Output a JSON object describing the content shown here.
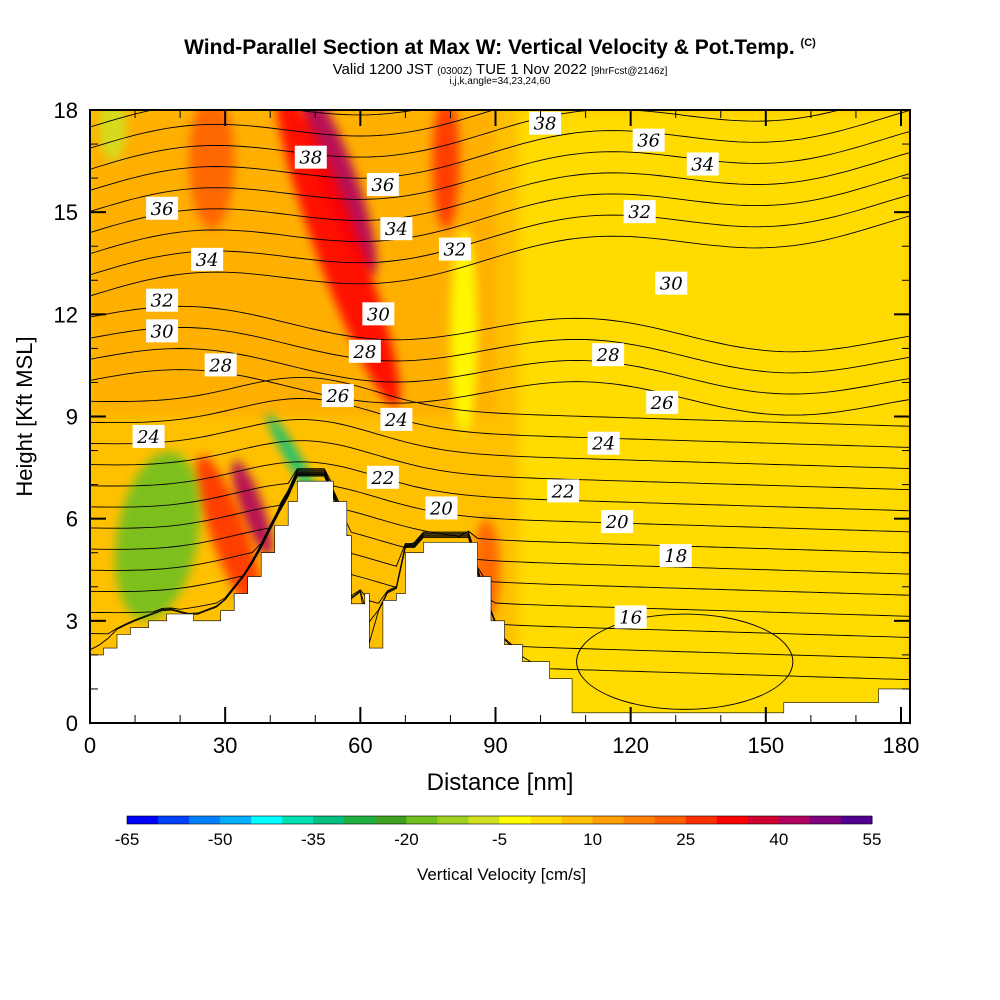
{
  "header": {
    "title": "Wind-Parallel Section at Max W: Vertical Velocity & Pot.Temp.",
    "copyright": "(C)",
    "valid_main": "Valid 1200 JST",
    "valid_small": "(0300Z)",
    "valid_date": "TUE 1 Nov 2022",
    "forecast": "[9hrFcst@2146z]",
    "indices": "i,j,k,angle=34,23,24,60"
  },
  "chart_data": {
    "type": "heatmap",
    "xlabel": "Distance [nm]",
    "ylabel": "Height [Kft MSL]",
    "xlim": [
      0,
      182
    ],
    "ylim": [
      0,
      18
    ],
    "x_ticks": [
      "0",
      "30",
      "60",
      "90",
      "120",
      "150",
      "180"
    ],
    "y_ticks": [
      "0",
      "3",
      "6",
      "9",
      "12",
      "15",
      "18"
    ],
    "colorbar": {
      "label": "Vertical Velocity [cm/s]",
      "min": -65,
      "max": 55,
      "step": 5,
      "tick_labels": [
        "-65",
        "-50",
        "-35",
        "-20",
        "-5",
        "10",
        "25",
        "40",
        "55"
      ],
      "colors": [
        "#0000ff",
        "#0040ff",
        "#0080ff",
        "#00b0ff",
        "#00ffff",
        "#00e0b0",
        "#00c080",
        "#20b040",
        "#40a020",
        "#70c020",
        "#a0d020",
        "#d0e020",
        "#ffff00",
        "#ffe000",
        "#ffc000",
        "#ffa000",
        "#ff8000",
        "#ff6000",
        "#ff3000",
        "#ff0000",
        "#d00030",
        "#b00060",
        "#800080",
        "#500090"
      ]
    },
    "terrain_ceiling_kft": [
      [
        0,
        2.0
      ],
      [
        3,
        2.2
      ],
      [
        6,
        2.6
      ],
      [
        9,
        2.8
      ],
      [
        13,
        3.0
      ],
      [
        17,
        3.2
      ],
      [
        23,
        3.0
      ],
      [
        29,
        3.3
      ],
      [
        32,
        3.8
      ],
      [
        35,
        4.3
      ],
      [
        38,
        5.0
      ],
      [
        41,
        5.8
      ],
      [
        44,
        6.5
      ],
      [
        46,
        7.1
      ],
      [
        52,
        7.1
      ],
      [
        54,
        6.5
      ],
      [
        57,
        5.5
      ],
      [
        58,
        3.5
      ],
      [
        61,
        3.8
      ],
      [
        62,
        2.2
      ],
      [
        65,
        3.6
      ],
      [
        68,
        3.8
      ],
      [
        70,
        5.0
      ],
      [
        73,
        5.0
      ],
      [
        74,
        5.3
      ],
      [
        84,
        5.3
      ],
      [
        86,
        4.3
      ],
      [
        89,
        3.0
      ],
      [
        92,
        2.3
      ],
      [
        96,
        1.8
      ],
      [
        102,
        1.3
      ],
      [
        107,
        0.3
      ],
      [
        153,
        0.3
      ],
      [
        154,
        0.6
      ],
      [
        175,
        1.0
      ],
      [
        182,
        1.0
      ]
    ],
    "theta_contours": [
      {
        "label": "16",
        "label_x": 120,
        "label_y": 3.1
      },
      {
        "label": "18",
        "label_x": 130,
        "label_y": 4.9
      },
      {
        "label": "20",
        "label_x": 78,
        "label_y": 6.3
      },
      {
        "label": "20",
        "label_x": 117,
        "label_y": 5.9
      },
      {
        "label": "22",
        "label_x": 65,
        "label_y": 7.2
      },
      {
        "label": "22",
        "label_x": 105,
        "label_y": 6.8
      },
      {
        "label": "24",
        "label_x": 13,
        "label_y": 8.4
      },
      {
        "label": "24",
        "label_x": 68,
        "label_y": 8.9
      },
      {
        "label": "24",
        "label_x": 114,
        "label_y": 8.2
      },
      {
        "label": "26",
        "label_x": 55,
        "label_y": 9.6
      },
      {
        "label": "26",
        "label_x": 127,
        "label_y": 9.4
      },
      {
        "label": "28",
        "label_x": 29,
        "label_y": 10.5
      },
      {
        "label": "28",
        "label_x": 61,
        "label_y": 10.9
      },
      {
        "label": "28",
        "label_x": 115,
        "label_y": 10.8
      },
      {
        "label": "30",
        "label_x": 16,
        "label_y": 11.5
      },
      {
        "label": "30",
        "label_x": 64,
        "label_y": 12.0
      },
      {
        "label": "30",
        "label_x": 129,
        "label_y": 12.9
      },
      {
        "label": "32",
        "label_x": 16,
        "label_y": 12.4
      },
      {
        "label": "32",
        "label_x": 81,
        "label_y": 13.9
      },
      {
        "label": "32",
        "label_x": 122,
        "label_y": 15.0
      },
      {
        "label": "34",
        "label_x": 26,
        "label_y": 13.6
      },
      {
        "label": "34",
        "label_x": 68,
        "label_y": 14.5
      },
      {
        "label": "34",
        "label_x": 136,
        "label_y": 16.4
      },
      {
        "label": "36",
        "label_x": 16,
        "label_y": 15.1
      },
      {
        "label": "36",
        "label_x": 65,
        "label_y": 15.8
      },
      {
        "label": "36",
        "label_x": 124,
        "label_y": 17.1
      },
      {
        "label": "38",
        "label_x": 49,
        "label_y": 16.6
      },
      {
        "label": "38",
        "label_x": 101,
        "label_y": 17.6
      }
    ],
    "w_features": [
      {
        "kind": "updraft",
        "value": 40,
        "x": 55,
        "y": 16.0,
        "rx": 4,
        "ry": 3.0,
        "angle": -20
      },
      {
        "kind": "updraft",
        "value": 30,
        "x": 55,
        "y": 14.0,
        "rx": 5,
        "ry": 5.0,
        "angle": -20
      },
      {
        "kind": "updraft",
        "value": 20,
        "x": 27,
        "y": 16.5,
        "rx": 5,
        "ry": 2.0,
        "angle": 0
      },
      {
        "kind": "updraft",
        "value": 25,
        "x": 79,
        "y": 16.5,
        "rx": 3,
        "ry": 2.0,
        "angle": 0
      },
      {
        "kind": "updraft",
        "value": 40,
        "x": 36,
        "y": 6.3,
        "rx": 2.5,
        "ry": 1.5,
        "angle": -20
      },
      {
        "kind": "updraft",
        "value": 25,
        "x": 31,
        "y": 5.5,
        "rx": 4,
        "ry": 2.5,
        "angle": -20
      },
      {
        "kind": "updraft",
        "value": 20,
        "x": 88,
        "y": 4.5,
        "rx": 3,
        "ry": 1.5,
        "angle": 0
      },
      {
        "kind": "downdraft",
        "value": -20,
        "x": 15,
        "y": 5.5,
        "rx": 9,
        "ry": 2.5,
        "angle": 10
      },
      {
        "kind": "downdraft",
        "value": -35,
        "x": 45,
        "y": 7.8,
        "rx": 1.5,
        "ry": 1.5,
        "angle": -30
      },
      {
        "kind": "downdraft",
        "value": -5,
        "x": 83,
        "y": 11.5,
        "rx": 3,
        "ry": 3.0,
        "angle": 0
      },
      {
        "kind": "downdraft",
        "value": -10,
        "x": 5,
        "y": 17.5,
        "rx": 3,
        "ry": 1.0,
        "angle": 0
      }
    ]
  }
}
